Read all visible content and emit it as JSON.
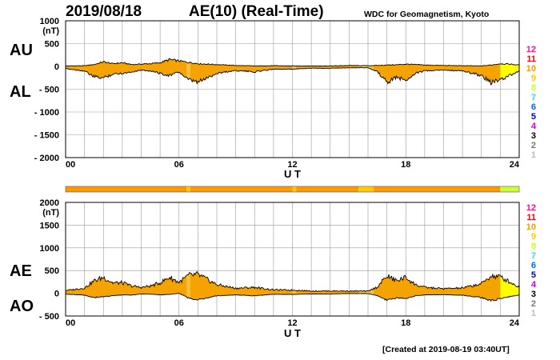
{
  "header": {
    "date": "2019/08/18",
    "title": "AE(10) (Real-Time)",
    "credit": "WDC for Geomagnetism, Kyoto"
  },
  "footer": {
    "created": "[Created at 2019-08-19 03:40UT]"
  },
  "labels": {
    "au": "AU",
    "al": "AL",
    "ae": "AE",
    "ao": "AO"
  },
  "colors": {
    "band_default": "#f5a300",
    "fill_orange": "#f5a300",
    "fill_light": "#f6c040",
    "fill_yellow": "#ffff00",
    "grid": "#999999"
  },
  "station_scale": [
    {
      "label": "12",
      "color": "#ff1493"
    },
    {
      "label": "11",
      "color": "#ff0000"
    },
    {
      "label": "10",
      "color": "#ff9900"
    },
    {
      "label": "9",
      "color": "#ffcc00"
    },
    {
      "label": "8",
      "color": "#ccff33"
    },
    {
      "label": "7",
      "color": "#33e0ff"
    },
    {
      "label": "6",
      "color": "#0066ff"
    },
    {
      "label": "5",
      "color": "#0000cc"
    },
    {
      "label": "4",
      "color": "#cc00cc"
    },
    {
      "label": "3",
      "color": "#000000"
    },
    {
      "label": "2",
      "color": "#777777"
    },
    {
      "label": "1",
      "color": "#bbbbbb"
    }
  ],
  "chart_data": [
    {
      "type": "area",
      "ylabel": "(nT)",
      "xlabel": "U T",
      "xlim": [
        0,
        24
      ],
      "ylim": [
        -2000,
        1000
      ],
      "yticks": [
        1000,
        500,
        0,
        -500,
        -1000,
        -1500,
        -2000
      ],
      "ytick_labels": [
        "1000",
        "500",
        "0",
        "- 500",
        "- 1000",
        "- 1500",
        "- 2000"
      ],
      "xticks": [
        0,
        6,
        12,
        18,
        24
      ],
      "xtick_labels": [
        "00",
        "06",
        "12",
        "18",
        "24"
      ],
      "grid": true,
      "series": [
        {
          "name": "AU",
          "x": [
            0,
            1,
            1.5,
            2,
            2.5,
            3,
            3.5,
            4,
            4.5,
            5,
            5.5,
            6,
            6.5,
            7,
            7.5,
            8,
            8.5,
            9,
            10,
            11,
            12,
            13,
            14,
            15,
            16,
            16.5,
            17,
            17.5,
            18,
            18.5,
            19,
            20,
            21,
            22,
            22.5,
            23,
            23.5,
            24
          ],
          "y": [
            10,
            15,
            40,
            100,
            60,
            80,
            40,
            50,
            60,
            80,
            150,
            120,
            90,
            60,
            50,
            40,
            30,
            20,
            10,
            15,
            10,
            10,
            10,
            20,
            15,
            20,
            30,
            35,
            50,
            40,
            30,
            20,
            15,
            10,
            30,
            60,
            50,
            30
          ]
        },
        {
          "name": "AL",
          "x": [
            0,
            1,
            1.5,
            2,
            2.5,
            3,
            3.5,
            4,
            4.5,
            5,
            5.5,
            6,
            6.5,
            7,
            7.5,
            8,
            8.5,
            9,
            10,
            11,
            12,
            13,
            14,
            15,
            16,
            16.5,
            17,
            17.5,
            18,
            18.5,
            19,
            20,
            21,
            22,
            22.5,
            23,
            23.5,
            24
          ],
          "y": [
            -50,
            -100,
            -230,
            -250,
            -170,
            -150,
            -120,
            -80,
            -100,
            -150,
            -200,
            -120,
            -300,
            -350,
            -250,
            -150,
            -120,
            -90,
            -120,
            -60,
            -60,
            -40,
            -40,
            -30,
            -30,
            -120,
            -350,
            -240,
            -300,
            -150,
            -100,
            -80,
            -100,
            -200,
            -350,
            -300,
            -200,
            -100
          ]
        }
      ]
    },
    {
      "type": "area",
      "ylabel": "(nT)",
      "xlabel": "U T",
      "xlim": [
        0,
        24
      ],
      "ylim": [
        -500,
        2000
      ],
      "yticks": [
        2000,
        1500,
        1000,
        500,
        0,
        -500
      ],
      "ytick_labels": [
        "2000",
        "1500",
        "1000",
        "500",
        "0",
        "- 500"
      ],
      "xticks": [
        0,
        6,
        12,
        18,
        24
      ],
      "xtick_labels": [
        "00",
        "06",
        "12",
        "18",
        "24"
      ],
      "grid": true,
      "series": [
        {
          "name": "AE",
          "x": [
            0,
            1,
            1.5,
            2,
            2.5,
            3,
            3.5,
            4,
            4.5,
            5,
            5.5,
            6,
            6.5,
            7,
            7.5,
            8,
            8.5,
            9,
            10,
            11,
            12,
            13,
            14,
            15,
            16,
            16.5,
            17,
            17.5,
            18,
            18.5,
            19,
            20,
            21,
            22,
            22.5,
            23,
            23.5,
            24
          ],
          "y": [
            60,
            115,
            270,
            350,
            230,
            230,
            160,
            130,
            160,
            230,
            350,
            240,
            390,
            410,
            300,
            190,
            150,
            110,
            130,
            75,
            70,
            50,
            50,
            50,
            45,
            140,
            380,
            275,
            350,
            190,
            130,
            100,
            115,
            210,
            380,
            360,
            250,
            130
          ]
        },
        {
          "name": "AO",
          "x": [
            0,
            1,
            1.5,
            2,
            2.5,
            3,
            3.5,
            4,
            4.5,
            5,
            5.5,
            6,
            6.5,
            7,
            7.5,
            8,
            8.5,
            9,
            10,
            11,
            12,
            13,
            14,
            15,
            16,
            16.5,
            17,
            17.5,
            18,
            18.5,
            19,
            20,
            21,
            22,
            22.5,
            23,
            23.5,
            24
          ],
          "y": [
            -20,
            -40,
            -95,
            -75,
            -55,
            -35,
            -40,
            -15,
            -20,
            -35,
            -25,
            0,
            -105,
            -145,
            -100,
            -55,
            -45,
            -35,
            -55,
            -22,
            -25,
            -15,
            -15,
            -5,
            -8,
            -50,
            -160,
            -100,
            -125,
            -55,
            -35,
            -30,
            -42,
            -95,
            -160,
            -120,
            -75,
            -35
          ]
        }
      ]
    }
  ],
  "color_band": {
    "segments": [
      {
        "from": 0,
        "to": 6.4,
        "level": "10"
      },
      {
        "from": 6.4,
        "to": 6.6,
        "level": "9"
      },
      {
        "from": 6.6,
        "to": 12.0,
        "level": "10"
      },
      {
        "from": 12.0,
        "to": 12.2,
        "level": "9"
      },
      {
        "from": 12.2,
        "to": 15.5,
        "level": "10"
      },
      {
        "from": 15.5,
        "to": 16.3,
        "level": "9"
      },
      {
        "from": 16.3,
        "to": 23.0,
        "level": "10"
      },
      {
        "from": 23.0,
        "to": 24.0,
        "level": "8"
      }
    ]
  }
}
